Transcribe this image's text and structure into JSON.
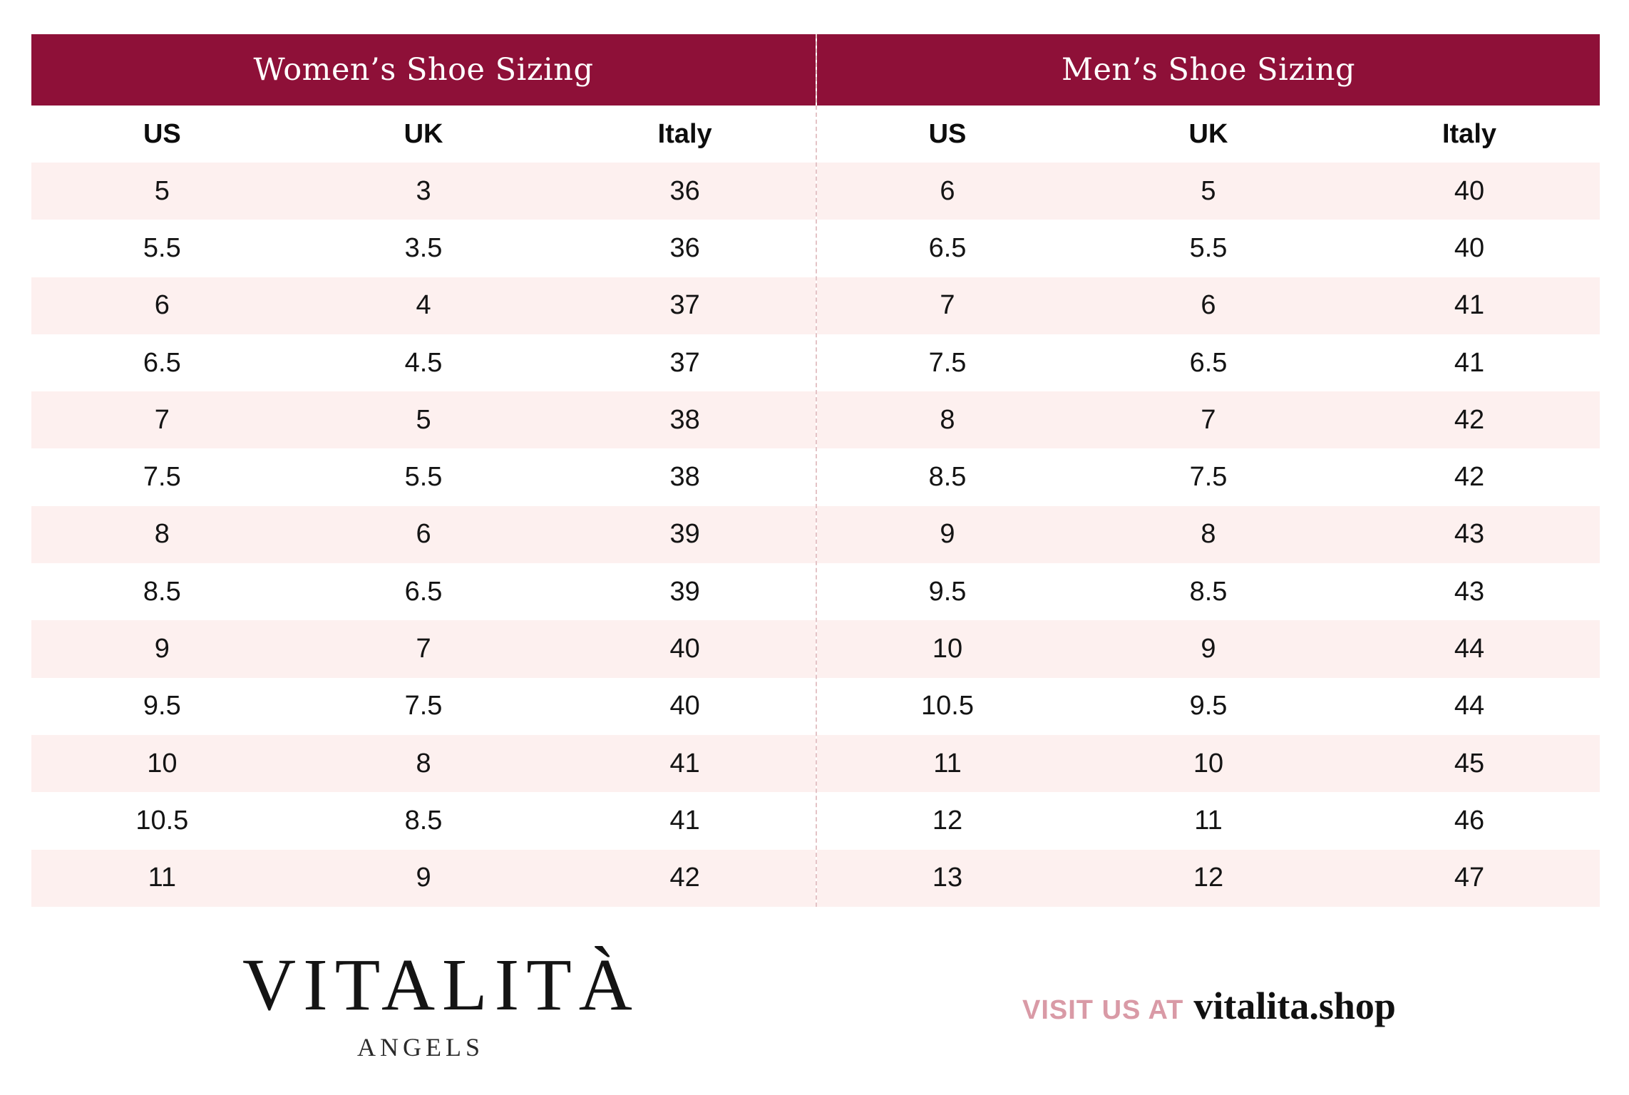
{
  "colors": {
    "banner": "#8e1038",
    "alt_row": "#fdf0ef",
    "visit_label": "#d99aa6"
  },
  "women": {
    "title": "Women’s Shoe Sizing",
    "headers": [
      "US",
      "UK",
      "Italy"
    ],
    "rows": [
      [
        "5",
        "3",
        "36"
      ],
      [
        "5.5",
        "3.5",
        "36"
      ],
      [
        "6",
        "4",
        "37"
      ],
      [
        "6.5",
        "4.5",
        "37"
      ],
      [
        "7",
        "5",
        "38"
      ],
      [
        "7.5",
        "5.5",
        "38"
      ],
      [
        "8",
        "6",
        "39"
      ],
      [
        "8.5",
        "6.5",
        "39"
      ],
      [
        "9",
        "7",
        "40"
      ],
      [
        "9.5",
        "7.5",
        "40"
      ],
      [
        "10",
        "8",
        "41"
      ],
      [
        "10.5",
        "8.5",
        "41"
      ],
      [
        "11",
        "9",
        "42"
      ]
    ]
  },
  "men": {
    "title": "Men’s Shoe Sizing",
    "headers": [
      "US",
      "UK",
      "Italy"
    ],
    "rows": [
      [
        "6",
        "5",
        "40"
      ],
      [
        "6.5",
        "5.5",
        "40"
      ],
      [
        "7",
        "6",
        "41"
      ],
      [
        "7.5",
        "6.5",
        "41"
      ],
      [
        "8",
        "7",
        "42"
      ],
      [
        "8.5",
        "7.5",
        "42"
      ],
      [
        "9",
        "8",
        "43"
      ],
      [
        "9.5",
        "8.5",
        "43"
      ],
      [
        "10",
        "9",
        "44"
      ],
      [
        "10.5",
        "9.5",
        "44"
      ],
      [
        "11",
        "10",
        "45"
      ],
      [
        "12",
        "11",
        "46"
      ],
      [
        "13",
        "12",
        "47"
      ]
    ]
  },
  "brand": {
    "name": "VITALITÀ",
    "tagline": "ANGELS"
  },
  "footer": {
    "visit_label": "VISIT US AT",
    "url": "vitalita.shop"
  }
}
